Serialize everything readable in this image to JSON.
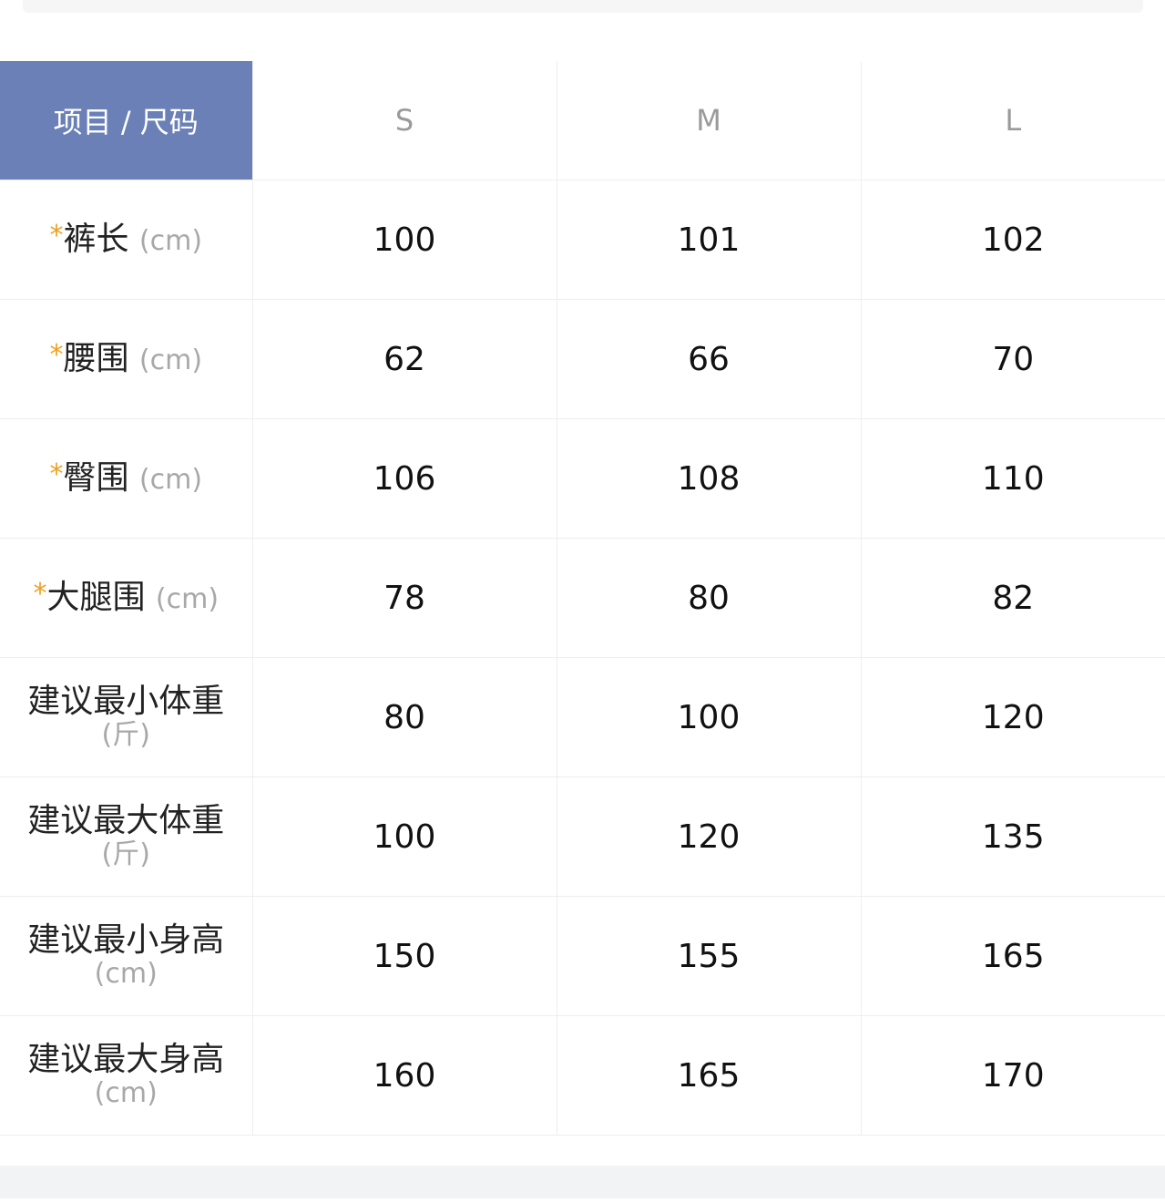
{
  "header": {
    "corner": "项目 / 尺码",
    "sizes": [
      "S",
      "M",
      "L"
    ]
  },
  "colors": {
    "header_bg": "#6a80b6",
    "required_star": "#f0a020"
  },
  "rows": [
    {
      "name": "裤长",
      "unit": "(cm)",
      "required": "*",
      "values": [
        "100",
        "101",
        "102"
      ]
    },
    {
      "name": "腰围",
      "unit": "(cm)",
      "required": "*",
      "values": [
        "62",
        "66",
        "70"
      ]
    },
    {
      "name": "臀围",
      "unit": "(cm)",
      "required": "*",
      "values": [
        "106",
        "108",
        "110"
      ]
    },
    {
      "name": "大腿围",
      "unit": "(cm)",
      "required": "*",
      "values": [
        "78",
        "80",
        "82"
      ]
    },
    {
      "name": "建议最小体重",
      "unit": "(斤)",
      "values": [
        "80",
        "100",
        "120"
      ]
    },
    {
      "name": "建议最大体重",
      "unit": "(斤)",
      "values": [
        "100",
        "120",
        "135"
      ]
    },
    {
      "name": "建议最小身高",
      "unit": "(cm)",
      "values": [
        "150",
        "155",
        "165"
      ]
    },
    {
      "name": "建议最大身高",
      "unit": "(cm)",
      "values": [
        "160",
        "165",
        "170"
      ]
    }
  ]
}
